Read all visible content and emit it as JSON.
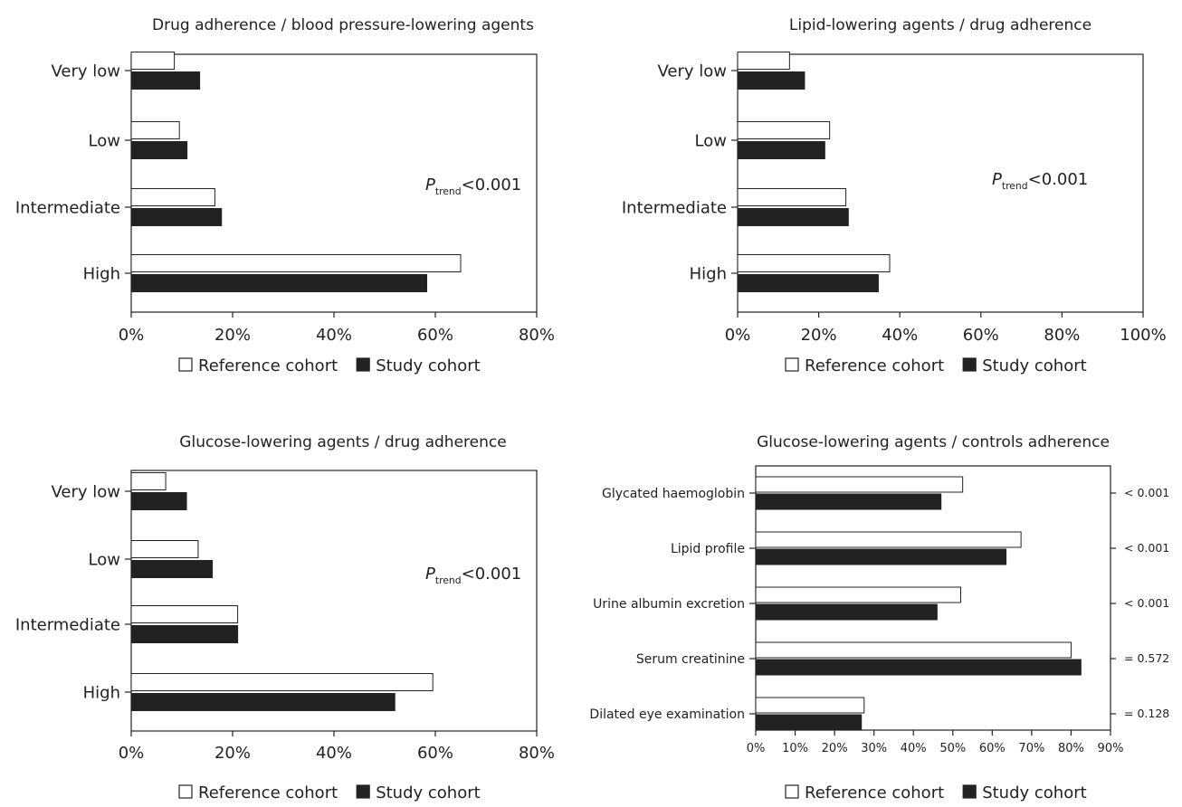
{
  "chart_data": [
    {
      "type": "bar",
      "orientation": "horizontal",
      "title": "Drug adherence / blood pressure-lowering agents",
      "categories": [
        "Very low",
        "Low",
        "Intermediate",
        "High"
      ],
      "series": [
        {
          "name": "Reference cohort",
          "values": [
            8.5,
            9.5,
            16.5,
            65.0
          ]
        },
        {
          "name": "Study cohort",
          "values": [
            13.5,
            11.0,
            17.8,
            58.3
          ]
        }
      ],
      "xlim": [
        0,
        80
      ],
      "xticks": [
        "0%",
        "20%",
        "40%",
        "60%",
        "80%"
      ],
      "annotation": {
        "prefix": "P",
        "subscript": "trend",
        "suffix": "<0.001"
      },
      "legend": [
        "Reference cohort",
        "Study cohort"
      ],
      "legend_position": "bottom"
    },
    {
      "type": "bar",
      "orientation": "horizontal",
      "title": "Lipid-lowering agents / drug adherence",
      "categories": [
        "Very low",
        "Low",
        "Intermediate",
        "High"
      ],
      "series": [
        {
          "name": "Reference cohort",
          "values": [
            12.8,
            22.7,
            26.7,
            37.5
          ]
        },
        {
          "name": "Study cohort",
          "values": [
            16.5,
            21.5,
            27.3,
            34.7
          ]
        }
      ],
      "xlim": [
        0,
        100
      ],
      "xticks": [
        "0%",
        "20%",
        "40%",
        "60%",
        "80%",
        "100%"
      ],
      "annotation": {
        "prefix": "P",
        "subscript": "trend",
        "suffix": "<0.001"
      },
      "legend": [
        "Reference cohort",
        "Study cohort"
      ],
      "legend_position": "bottom"
    },
    {
      "type": "bar",
      "orientation": "horizontal",
      "title": "Glucose-lowering agents / drug adherence",
      "categories": [
        "Very low",
        "Low",
        "Intermediate",
        "High"
      ],
      "series": [
        {
          "name": "Reference cohort",
          "values": [
            6.8,
            13.2,
            21.0,
            59.5
          ]
        },
        {
          "name": "Study cohort",
          "values": [
            10.9,
            16.0,
            21.0,
            52.0
          ]
        }
      ],
      "xlim": [
        0,
        80
      ],
      "xticks": [
        "0%",
        "20%",
        "40%",
        "60%",
        "80%"
      ],
      "annotation": {
        "prefix": "P",
        "subscript": "trend",
        "suffix": "<0.001"
      },
      "legend": [
        "Reference cohort",
        "Study cohort"
      ],
      "legend_position": "bottom"
    },
    {
      "type": "bar",
      "orientation": "horizontal",
      "title": "Glucose-lowering agents / controls adherence",
      "categories": [
        "Glycated haemoglobin",
        "Lipid profile",
        "Urine albumin excretion",
        "Serum creatinine",
        "Dilated eye examination"
      ],
      "series": [
        {
          "name": "Reference cohort",
          "values": [
            52.5,
            67.3,
            52.0,
            80.0,
            27.5
          ]
        },
        {
          "name": "Study cohort",
          "values": [
            47.0,
            63.5,
            46.0,
            82.5,
            26.8
          ]
        }
      ],
      "xlim": [
        0,
        90
      ],
      "xticks": [
        "0%",
        "10%",
        "20%",
        "30%",
        "40%",
        "50%",
        "60%",
        "70%",
        "80%",
        "90%"
      ],
      "right_labels": [
        "< 0.001",
        "< 0.001",
        "< 0.001",
        "= 0.572",
        "= 0.128"
      ],
      "legend": [
        "Reference cohort",
        "Study cohort"
      ],
      "legend_position": "bottom"
    }
  ]
}
